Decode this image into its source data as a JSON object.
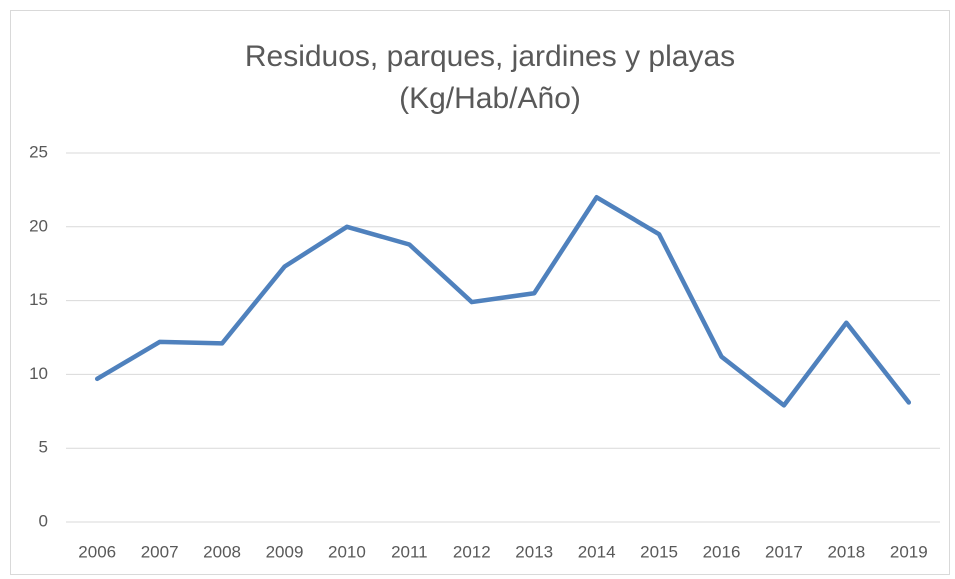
{
  "chart_data": {
    "type": "line",
    "title": [
      "Residuos, parques, jardines y playas",
      "(Kg/Hab/Año)"
    ],
    "categories": [
      "2006",
      "2007",
      "2008",
      "2009",
      "2010",
      "2011",
      "2012",
      "2013",
      "2014",
      "2015",
      "2016",
      "2017",
      "2018",
      "2019"
    ],
    "series": [
      {
        "name": "Residuos, parques, jardines y playas",
        "color": "#4f81bd",
        "values": [
          9.7,
          12.2,
          12.1,
          17.3,
          20.0,
          18.8,
          14.9,
          15.5,
          22.0,
          19.5,
          11.2,
          7.9,
          13.5,
          8.1
        ]
      }
    ],
    "ylim": [
      0,
      25
    ],
    "yticks": [
      0,
      5,
      10,
      15,
      20,
      25
    ],
    "grid": true,
    "legend": false
  }
}
